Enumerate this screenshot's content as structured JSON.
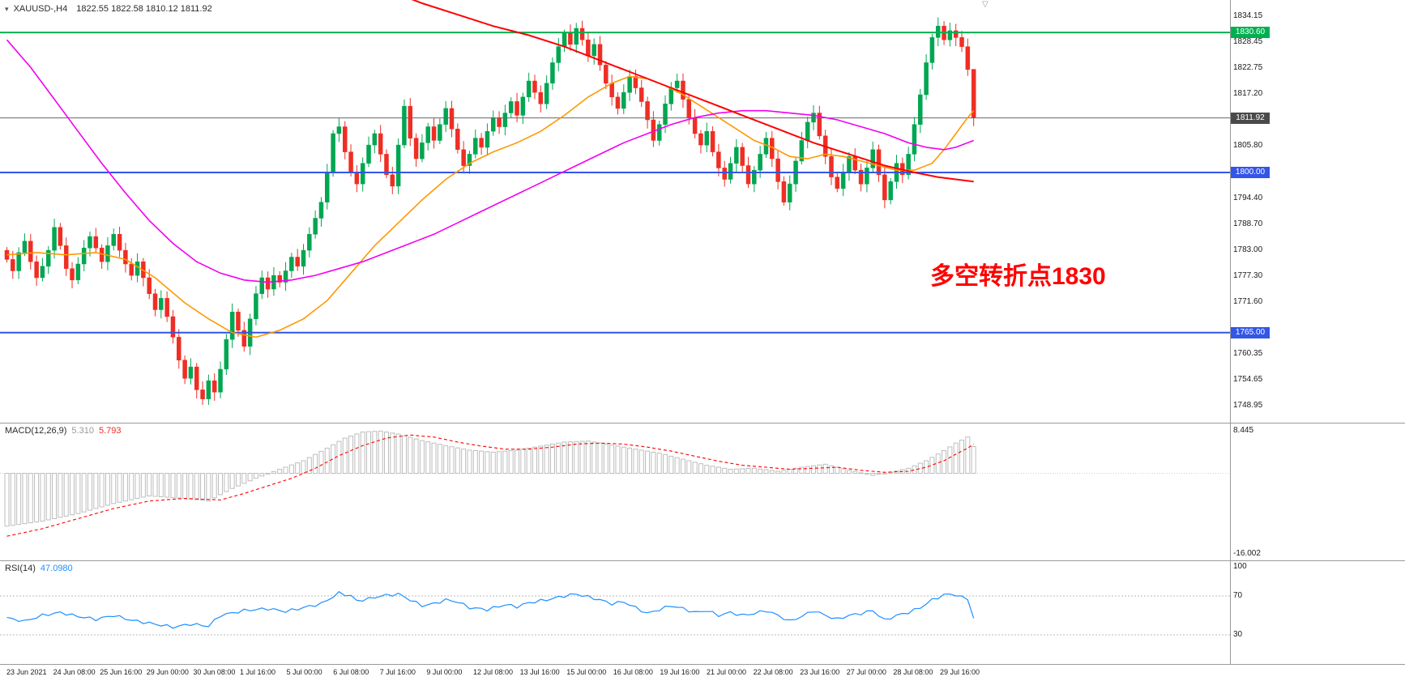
{
  "window": {
    "symbol_period": "XAUUSD-,H4",
    "ohlc": "1822.55 1822.58 1810.12 1811.92"
  },
  "icons": {
    "collapse": "▾",
    "shift_marker": "▽"
  },
  "annotation": {
    "text": "多空转折点1830",
    "color": "#ff0000"
  },
  "colors": {
    "up": "#00a651",
    "down": "#ee2e24",
    "ma_fast": "#ff9800",
    "ma_mid": "#f200f2",
    "ma_slow": "#ff0000",
    "macd_bar": "#bdbdbd",
    "macd_signal": "#ff0000",
    "rsi_line": "#1e90ff",
    "level_green": "#00b050",
    "level_blue": "#3355e8",
    "current_price": "#666666",
    "axis_text": "#1a1a1a"
  },
  "price_axis": {
    "grid_labels": [
      "1834.15",
      "1828.45",
      "1822.75",
      "1817.20",
      "1805.80",
      "1794.40",
      "1788.70",
      "1783.00",
      "1777.30",
      "1771.60",
      "1760.35",
      "1754.65",
      "1748.95"
    ],
    "tags": [
      {
        "text": "1830.60",
        "price": 1830.6,
        "bg": "#00b050"
      },
      {
        "text": "1811.92",
        "price": 1811.92,
        "bg": "#4a4a4a"
      },
      {
        "text": "1800.00",
        "price": 1800.0,
        "bg": "#3355e8"
      },
      {
        "text": "1765.00",
        "price": 1765.0,
        "bg": "#3355e8"
      }
    ]
  },
  "time_axis": {
    "labels": [
      "23 Jun 2021",
      "24 Jun 08:00",
      "25 Jun 16:00",
      "29 Jun 00:00",
      "30 Jun 08:00",
      "1 Jul 16:00",
      "5 Jul 00:00",
      "6 Jul 08:00",
      "7 Jul 16:00",
      "9 Jul 00:00",
      "12 Jul 08:00",
      "13 Jul 16:00",
      "15 Jul 00:00",
      "16 Jul 08:00",
      "19 Jul 16:00",
      "21 Jul 00:00",
      "22 Jul 08:00",
      "23 Jul 16:00",
      "27 Jul 00:00",
      "28 Jul 08:00",
      "29 Jul 16:00"
    ]
  },
  "panels": {
    "macd": {
      "label": "MACD(12,26,9)",
      "value_main": "5.310",
      "value_signal": "5.793",
      "axis_max": "8.445",
      "axis_min": "-16.002"
    },
    "rsi": {
      "label": "RSI(14)",
      "value": "47.0980",
      "axis": [
        "100",
        "70",
        "30"
      ]
    }
  },
  "chart_data": {
    "type": "candlestick",
    "symbol": "XAUUSD-",
    "timeframe": "H4",
    "title": "XAUUSD-,H4 1822.55 1822.58 1810.12 1811.92",
    "price_range": [
      1745.0,
      1837.7
    ],
    "first_open": 1783.0,
    "last_ohlc": {
      "open": 1822.55,
      "high": 1822.58,
      "low": 1810.12,
      "close": 1811.92
    },
    "closes": [
      1781.0,
      1778.5,
      1782.5,
      1785.0,
      1780.5,
      1777.0,
      1779.5,
      1783.0,
      1788.0,
      1784.0,
      1779.0,
      1776.5,
      1780.0,
      1783.5,
      1786.0,
      1783.5,
      1780.5,
      1784.0,
      1786.5,
      1783.0,
      1780.0,
      1777.5,
      1780.5,
      1777.0,
      1773.5,
      1770.0,
      1772.5,
      1768.5,
      1764.0,
      1759.0,
      1755.0,
      1757.5,
      1752.5,
      1750.5,
      1754.5,
      1752.0,
      1757.0,
      1763.5,
      1769.5,
      1765.5,
      1762.0,
      1768.0,
      1773.5,
      1777.0,
      1774.5,
      1777.5,
      1776.0,
      1778.5,
      1781.5,
      1779.5,
      1783.0,
      1786.5,
      1790.0,
      1793.5,
      1800.0,
      1808.5,
      1810.0,
      1804.5,
      1800.0,
      1797.5,
      1802.0,
      1806.0,
      1808.5,
      1804.0,
      1799.5,
      1797.0,
      1806.0,
      1814.5,
      1807.5,
      1803.0,
      1806.5,
      1810.0,
      1807.0,
      1810.5,
      1814.0,
      1809.5,
      1805.0,
      1801.5,
      1804.0,
      1807.5,
      1805.5,
      1809.0,
      1812.0,
      1810.0,
      1813.0,
      1815.5,
      1812.5,
      1816.5,
      1820.0,
      1817.5,
      1815.0,
      1819.5,
      1824.0,
      1827.5,
      1830.5,
      1828.0,
      1831.5,
      1829.0,
      1825.5,
      1828.0,
      1823.5,
      1819.5,
      1816.5,
      1814.0,
      1817.5,
      1821.0,
      1818.5,
      1815.5,
      1811.5,
      1807.0,
      1810.5,
      1815.0,
      1818.5,
      1820.0,
      1816.0,
      1812.0,
      1808.5,
      1806.0,
      1809.0,
      1804.5,
      1801.0,
      1798.5,
      1802.0,
      1805.5,
      1801.5,
      1797.5,
      1800.5,
      1804.0,
      1807.5,
      1803.0,
      1798.0,
      1793.5,
      1797.5,
      1802.5,
      1807.0,
      1811.0,
      1813.0,
      1808.0,
      1803.5,
      1799.0,
      1796.5,
      1800.0,
      1803.5,
      1800.5,
      1797.5,
      1801.0,
      1805.0,
      1799.5,
      1794.0,
      1798.0,
      1802.0,
      1799.5,
      1804.0,
      1810.5,
      1817.0,
      1824.0,
      1829.5,
      1832.0,
      1829.0,
      1831.0,
      1829.5,
      1827.5,
      1822.5,
      1811.92
    ],
    "levels": [
      {
        "price": 1830.6,
        "color": "#00b050",
        "width": 2
      },
      {
        "price": 1800.0,
        "color": "#3355e8",
        "width": 2
      },
      {
        "price": 1765.0,
        "color": "#3355e8",
        "width": 2
      },
      {
        "price": 1811.92,
        "color": "#666666",
        "width": 1
      }
    ],
    "ma_fast_points": [
      [
        0,
        1782
      ],
      [
        5,
        1782.5
      ],
      [
        10,
        1782
      ],
      [
        15,
        1782.5
      ],
      [
        20,
        1781
      ],
      [
        25,
        1777
      ],
      [
        30,
        1771.5
      ],
      [
        34,
        1768
      ],
      [
        38,
        1765
      ],
      [
        42,
        1764
      ],
      [
        46,
        1765.5
      ],
      [
        50,
        1768
      ],
      [
        54,
        1772
      ],
      [
        58,
        1778
      ],
      [
        62,
        1784
      ],
      [
        66,
        1789
      ],
      [
        70,
        1794
      ],
      [
        74,
        1798.5
      ],
      [
        78,
        1802
      ],
      [
        82,
        1804.5
      ],
      [
        86,
        1806.5
      ],
      [
        90,
        1809
      ],
      [
        94,
        1812.5
      ],
      [
        98,
        1816.5
      ],
      [
        102,
        1819.5
      ],
      [
        105,
        1821
      ],
      [
        108,
        1820.5
      ],
      [
        111,
        1819
      ],
      [
        114,
        1817
      ],
      [
        117,
        1814.5
      ],
      [
        120,
        1812
      ],
      [
        123,
        1809.5
      ],
      [
        126,
        1807
      ],
      [
        129,
        1805.5
      ],
      [
        132,
        1803.5
      ],
      [
        135,
        1803
      ],
      [
        138,
        1804
      ],
      [
        141,
        1803.5
      ],
      [
        144,
        1802.5
      ],
      [
        147,
        1801.5
      ],
      [
        150,
        1800.5
      ],
      [
        153,
        1800.5
      ],
      [
        156,
        1802
      ],
      [
        158,
        1805
      ],
      [
        160,
        1808.5
      ],
      [
        162,
        1812
      ],
      [
        163,
        1813.5
      ]
    ],
    "ma_mid_points": [
      [
        0,
        1829
      ],
      [
        4,
        1823
      ],
      [
        8,
        1816
      ],
      [
        12,
        1809
      ],
      [
        16,
        1802
      ],
      [
        20,
        1795.5
      ],
      [
        24,
        1789.5
      ],
      [
        28,
        1784.5
      ],
      [
        32,
        1780.5
      ],
      [
        36,
        1778
      ],
      [
        40,
        1776.5
      ],
      [
        44,
        1776
      ],
      [
        48,
        1776.5
      ],
      [
        52,
        1777.5
      ],
      [
        56,
        1779
      ],
      [
        60,
        1780.5
      ],
      [
        64,
        1782.5
      ],
      [
        68,
        1784.5
      ],
      [
        72,
        1786.5
      ],
      [
        76,
        1789
      ],
      [
        80,
        1791.5
      ],
      [
        84,
        1794
      ],
      [
        88,
        1796.5
      ],
      [
        92,
        1799
      ],
      [
        96,
        1801.5
      ],
      [
        100,
        1804
      ],
      [
        104,
        1806.5
      ],
      [
        108,
        1808.5
      ],
      [
        112,
        1810.5
      ],
      [
        116,
        1812
      ],
      [
        120,
        1813
      ],
      [
        124,
        1813.5
      ],
      [
        128,
        1813.5
      ],
      [
        132,
        1813
      ],
      [
        136,
        1812.5
      ],
      [
        140,
        1811.5
      ],
      [
        144,
        1810
      ],
      [
        148,
        1808.5
      ],
      [
        152,
        1806.5
      ],
      [
        155,
        1805.5
      ],
      [
        158,
        1805
      ],
      [
        160,
        1805.5
      ],
      [
        162,
        1806.5
      ],
      [
        163,
        1807
      ]
    ],
    "ma_slow_points": [
      [
        66,
        1839
      ],
      [
        70,
        1837
      ],
      [
        76,
        1834.5
      ],
      [
        82,
        1832
      ],
      [
        88,
        1830
      ],
      [
        94,
        1827.5
      ],
      [
        100,
        1824.5
      ],
      [
        106,
        1821.5
      ],
      [
        112,
        1818.5
      ],
      [
        118,
        1815.5
      ],
      [
        124,
        1812.5
      ],
      [
        130,
        1809.5
      ],
      [
        136,
        1806.5
      ],
      [
        142,
        1804
      ],
      [
        148,
        1801.5
      ],
      [
        153,
        1800
      ],
      [
        157,
        1799
      ],
      [
        160,
        1798.5
      ],
      [
        163,
        1798
      ]
    ],
    "macd": {
      "range": [
        -16.002,
        8.445
      ],
      "current": [
        5.31,
        5.793
      ],
      "hist_points": [
        [
          0,
          -10.5
        ],
        [
          6,
          -9.5
        ],
        [
          12,
          -8
        ],
        [
          18,
          -6
        ],
        [
          24,
          -4.5
        ],
        [
          30,
          -5
        ],
        [
          34,
          -5.5
        ],
        [
          38,
          -3
        ],
        [
          42,
          -1
        ],
        [
          46,
          0.8
        ],
        [
          50,
          2.5
        ],
        [
          54,
          5
        ],
        [
          57,
          7
        ],
        [
          60,
          8.2
        ],
        [
          63,
          8.4
        ],
        [
          66,
          7.8
        ],
        [
          70,
          6.5
        ],
        [
          74,
          5.5
        ],
        [
          78,
          4.6
        ],
        [
          82,
          4.2
        ],
        [
          86,
          4.6
        ],
        [
          90,
          5.4
        ],
        [
          94,
          6.2
        ],
        [
          98,
          6.4
        ],
        [
          102,
          5.6
        ],
        [
          106,
          4.8
        ],
        [
          110,
          4
        ],
        [
          114,
          2.8
        ],
        [
          118,
          1.6
        ],
        [
          122,
          0.8
        ],
        [
          126,
          1
        ],
        [
          130,
          0.4
        ],
        [
          134,
          1.2
        ],
        [
          138,
          1.8
        ],
        [
          142,
          0.6
        ],
        [
          146,
          -0.4
        ],
        [
          149,
          0.2
        ],
        [
          152,
          1
        ],
        [
          155,
          2.5
        ],
        [
          158,
          4.5
        ],
        [
          160,
          6
        ],
        [
          162,
          7.2
        ],
        [
          163,
          5.31
        ]
      ],
      "signal_points": [
        [
          0,
          -12.5
        ],
        [
          6,
          -11
        ],
        [
          12,
          -9
        ],
        [
          18,
          -7
        ],
        [
          24,
          -5.5
        ],
        [
          30,
          -5
        ],
        [
          36,
          -5.3
        ],
        [
          40,
          -4
        ],
        [
          44,
          -2.5
        ],
        [
          48,
          -1
        ],
        [
          52,
          1
        ],
        [
          56,
          3.5
        ],
        [
          60,
          5.5
        ],
        [
          64,
          7
        ],
        [
          68,
          7.6
        ],
        [
          72,
          7.2
        ],
        [
          76,
          6.2
        ],
        [
          80,
          5.4
        ],
        [
          84,
          4.8
        ],
        [
          88,
          4.8
        ],
        [
          92,
          5.2
        ],
        [
          96,
          5.8
        ],
        [
          100,
          6
        ],
        [
          104,
          5.8
        ],
        [
          108,
          5.2
        ],
        [
          112,
          4.4
        ],
        [
          116,
          3.4
        ],
        [
          120,
          2.4
        ],
        [
          124,
          1.6
        ],
        [
          128,
          1.2
        ],
        [
          132,
          0.8
        ],
        [
          136,
          1
        ],
        [
          140,
          1.2
        ],
        [
          144,
          0.6
        ],
        [
          148,
          0.2
        ],
        [
          152,
          0.4
        ],
        [
          155,
          1.2
        ],
        [
          158,
          2.5
        ],
        [
          160,
          3.8
        ],
        [
          162,
          5
        ],
        [
          163,
          5.79
        ]
      ]
    },
    "rsi": {
      "levels": [
        70,
        30
      ],
      "current": 47.098,
      "points": [
        [
          0,
          48
        ],
        [
          3,
          44
        ],
        [
          6,
          50
        ],
        [
          9,
          53
        ],
        [
          12,
          49
        ],
        [
          15,
          46
        ],
        [
          18,
          50
        ],
        [
          21,
          45
        ],
        [
          24,
          42
        ],
        [
          28,
          38
        ],
        [
          31,
          41
        ],
        [
          34,
          39
        ],
        [
          36,
          50
        ],
        [
          40,
          55
        ],
        [
          44,
          57
        ],
        [
          47,
          54
        ],
        [
          50,
          58
        ],
        [
          53,
          62
        ],
        [
          56,
          73
        ],
        [
          58,
          70
        ],
        [
          59,
          65
        ],
        [
          61,
          67
        ],
        [
          63,
          70
        ],
        [
          66,
          72
        ],
        [
          68,
          66
        ],
        [
          70,
          60
        ],
        [
          72,
          62
        ],
        [
          74,
          66
        ],
        [
          76,
          64
        ],
        [
          78,
          58
        ],
        [
          81,
          56
        ],
        [
          84,
          61
        ],
        [
          86,
          59
        ],
        [
          88,
          63
        ],
        [
          91,
          66
        ],
        [
          94,
          70
        ],
        [
          96,
          72
        ],
        [
          98,
          69
        ],
        [
          100,
          66
        ],
        [
          102,
          62
        ],
        [
          104,
          64
        ],
        [
          106,
          58
        ],
        [
          108,
          52
        ],
        [
          110,
          56
        ],
        [
          112,
          60
        ],
        [
          114,
          57
        ],
        [
          116,
          53
        ],
        [
          118,
          55
        ],
        [
          120,
          50
        ],
        [
          122,
          53
        ],
        [
          124,
          50
        ],
        [
          126,
          52
        ],
        [
          128,
          55
        ],
        [
          130,
          50
        ],
        [
          132,
          44
        ],
        [
          134,
          49
        ],
        [
          136,
          55
        ],
        [
          138,
          50
        ],
        [
          140,
          46
        ],
        [
          142,
          50
        ],
        [
          144,
          52
        ],
        [
          146,
          55
        ],
        [
          148,
          45
        ],
        [
          150,
          50
        ],
        [
          152,
          53
        ],
        [
          154,
          58
        ],
        [
          156,
          66
        ],
        [
          158,
          71
        ],
        [
          159,
          72
        ],
        [
          160,
          70
        ],
        [
          161,
          70
        ],
        [
          162,
          66
        ],
        [
          163,
          47.1
        ]
      ]
    }
  }
}
